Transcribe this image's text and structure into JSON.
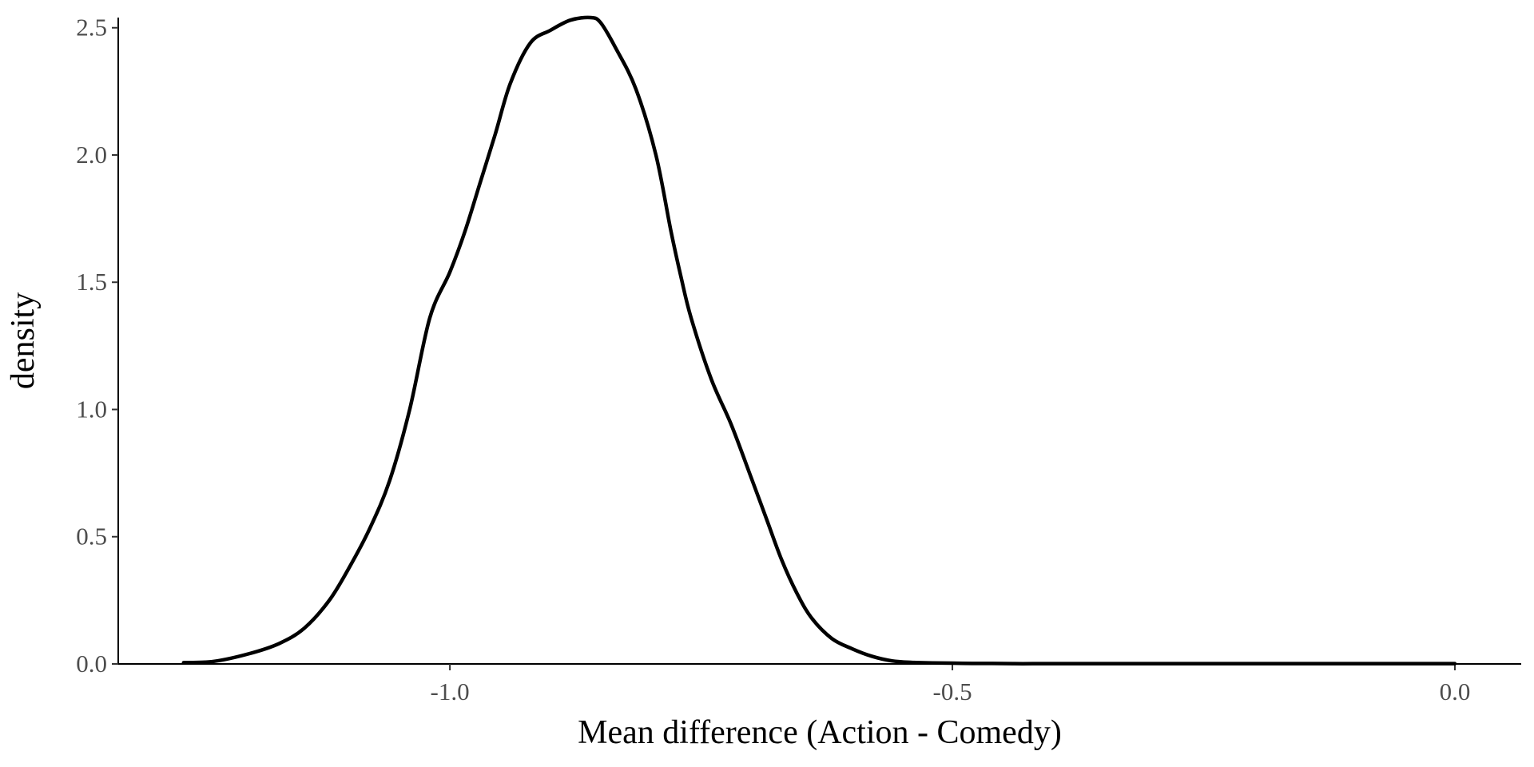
{
  "chart_data": {
    "type": "line",
    "title": "",
    "xlabel": "Mean difference (Action - Comedy)",
    "ylabel": "density",
    "xlim": [
      -1.33,
      0.066
    ],
    "ylim": [
      0,
      2.54
    ],
    "grid": false,
    "x_ticks": [
      -1.0,
      -0.5,
      0.0
    ],
    "x_tick_labels": [
      "-1.0",
      "-0.5",
      "0.0"
    ],
    "y_ticks": [
      0.0,
      0.5,
      1.0,
      1.5,
      2.0,
      2.5
    ],
    "y_tick_labels": [
      "0.0",
      "0.5",
      "1.0",
      "1.5",
      "2.0",
      "2.5"
    ],
    "series": [
      {
        "color": "#000000",
        "x": [
          -1.265,
          -1.235,
          -1.2,
          -1.17,
          -1.145,
          -1.12,
          -1.1,
          -1.08,
          -1.06,
          -1.04,
          -1.02,
          -1.0,
          -0.985,
          -0.97,
          -0.955,
          -0.94,
          -0.92,
          -0.9,
          -0.88,
          -0.86,
          -0.85,
          -0.835,
          -0.815,
          -0.795,
          -0.78,
          -0.77,
          -0.76,
          -0.74,
          -0.72,
          -0.7,
          -0.685,
          -0.67,
          -0.655,
          -0.64,
          -0.62,
          -0.6,
          -0.58,
          -0.56,
          -0.54,
          -0.52,
          -0.5,
          -0.48,
          -0.46,
          -0.44,
          -0.42,
          -0.4,
          -0.38,
          -0.35,
          -0.32,
          -0.28,
          -0.24,
          -0.2,
          -0.15,
          -0.1,
          -0.05,
          0.0
        ],
        "y": [
          0.005,
          0.01,
          0.04,
          0.08,
          0.14,
          0.25,
          0.38,
          0.53,
          0.72,
          1.0,
          1.36,
          1.54,
          1.7,
          1.89,
          2.08,
          2.28,
          2.44,
          2.49,
          2.53,
          2.54,
          2.52,
          2.42,
          2.26,
          2.0,
          1.7,
          1.52,
          1.36,
          1.12,
          0.94,
          0.73,
          0.57,
          0.41,
          0.28,
          0.18,
          0.1,
          0.06,
          0.03,
          0.012,
          0.006,
          0.004,
          0.003,
          0.002,
          0.002,
          0.001,
          0.001,
          0.001,
          0.001,
          0.001,
          0.001,
          0.001,
          0.001,
          0.001,
          0.001,
          0.001,
          0.001,
          0.001
        ]
      }
    ]
  }
}
